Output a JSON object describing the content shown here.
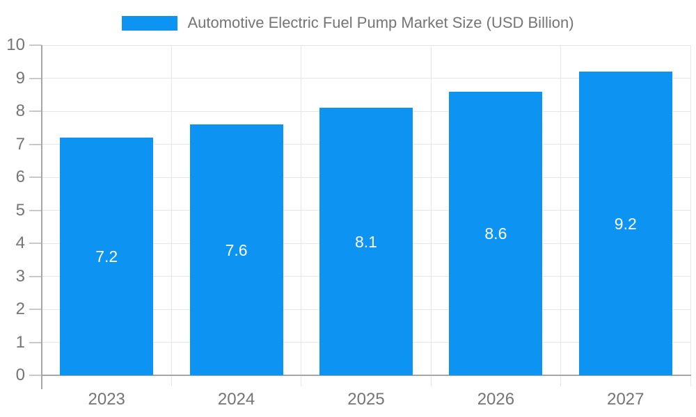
{
  "chart_data": {
    "type": "bar",
    "title": "Automotive Electric Fuel Pump Market Size (USD Billion)",
    "categories": [
      "2023",
      "2024",
      "2025",
      "2026",
      "2027"
    ],
    "values": [
      7.2,
      7.6,
      8.1,
      8.6,
      9.2
    ],
    "bar_value_labels": [
      "7.2",
      "7.6",
      "8.1",
      "8.6",
      "9.2"
    ],
    "xlabel": "",
    "ylabel": "",
    "ylim": [
      0,
      10
    ],
    "ytick_step": 1,
    "ytick_labels": [
      "0",
      "1",
      "2",
      "3",
      "4",
      "5",
      "6",
      "7",
      "8",
      "9",
      "10"
    ],
    "grid": true,
    "legend_position": "top",
    "legend_entries": [
      "Automotive Electric Fuel Pump Market Size (USD Billion)"
    ]
  },
  "colors": {
    "bar": "#0d94f2",
    "grid": "#e6e6e6",
    "axis": "#a6a6a6",
    "tick": "#c9c9c9",
    "axis_text": "#757575",
    "title_text": "#757575",
    "bar_value_text": "#ffffff",
    "background": "#ffffff"
  }
}
